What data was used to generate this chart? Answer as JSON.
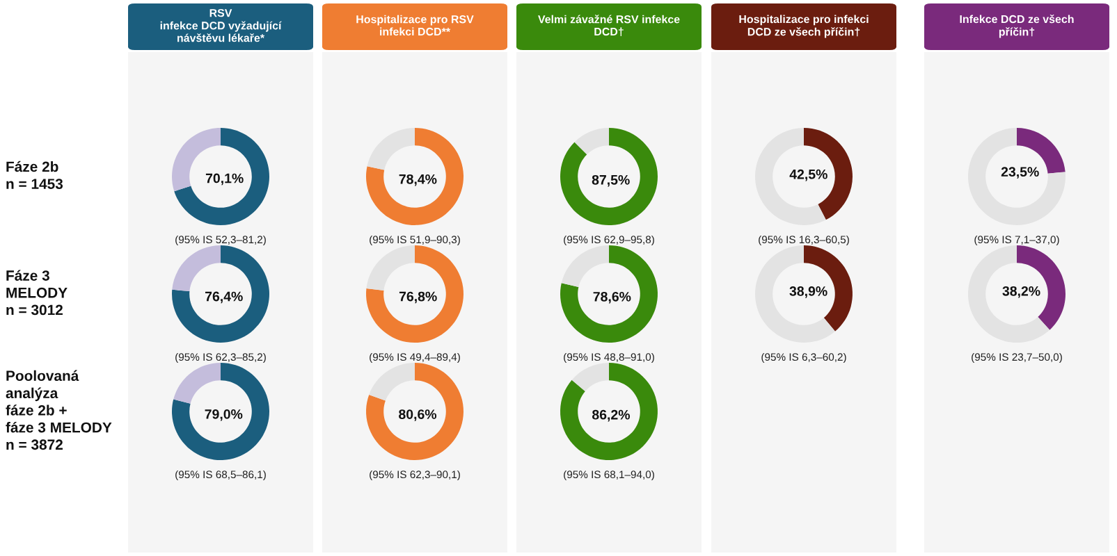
{
  "chart_data": [
    {
      "type": "donut",
      "title": "RSV\ninfekce DCD vyžadující\nnávštěvu lékaře*",
      "ylabel": "Fáze 2b\nn = 1453",
      "categories": [
        null,
        null
      ],
      "values": [
        70.1,
        29.9
      ],
      "colors": [
        "#1b5e7e",
        "#c4bddc"
      ],
      "value_labels": [
        "70,1%",
        null
      ],
      "annotations": [
        "(95% IS 52,3–81,2)"
      ]
    },
    {
      "type": "donut",
      "title": "Hospitalizace pro RSV\ninfekci DCD**",
      "categories": [
        null,
        null
      ],
      "values": [
        78.4,
        21.6
      ],
      "colors": [
        "#ef7d32",
        "#e3e3e3"
      ],
      "value_labels": [
        "78,4%",
        null
      ],
      "annotations": [
        "(95% IS 51,9–90,3)"
      ]
    },
    {
      "type": "donut",
      "title": "Velmi závažné RSV infekce\nDCD†",
      "categories": [
        null,
        null
      ],
      "values": [
        87.5,
        12.5
      ],
      "colors": [
        "#3a8a0c",
        "#e3e3e3"
      ],
      "value_labels": [
        "87,5%",
        null
      ],
      "annotations": [
        "(95% IS 62,9–95,8)"
      ]
    },
    {
      "type": "donut",
      "title": "Hospitalizace pro infekci\nDCD ze všech příčin†",
      "categories": [
        null,
        null
      ],
      "values": [
        42.5,
        57.5
      ],
      "colors": [
        "#6b1d0f",
        "#e3e3e3"
      ],
      "value_labels": [
        "42,5%",
        null
      ],
      "annotations": [
        "(95% IS 16,3–60,5)"
      ]
    },
    {
      "type": "donut",
      "title": "Infekce DCD ze všech\npříčin†",
      "categories": [
        null,
        null
      ],
      "values": [
        23.5,
        76.5
      ],
      "colors": [
        "#7a2a7c",
        "#e3e3e3"
      ],
      "value_labels": [
        "23,5%",
        null
      ],
      "annotations": [
        "(95% IS 7,1–37,0)"
      ]
    },
    {
      "type": "donut",
      "ylabel": "Fáze 3\nMELODY\nn = 3012",
      "categories": [
        null,
        null
      ],
      "values": [
        76.4,
        23.6
      ],
      "colors": [
        "#1b5e7e",
        "#c4bddc"
      ],
      "value_labels": [
        "76,4%",
        null
      ],
      "annotations": [
        "(95% IS 62,3–85,2)"
      ]
    },
    {
      "type": "donut",
      "categories": [
        null,
        null
      ],
      "values": [
        76.8,
        23.2
      ],
      "colors": [
        "#ef7d32",
        "#e3e3e3"
      ],
      "value_labels": [
        "76,8%",
        null
      ],
      "annotations": [
        "(95% IS 49,4–89,4)"
      ]
    },
    {
      "type": "donut",
      "categories": [
        null,
        null
      ],
      "values": [
        78.6,
        21.4
      ],
      "colors": [
        "#3a8a0c",
        "#e3e3e3"
      ],
      "value_labels": [
        "78,6%",
        null
      ],
      "annotations": [
        "(95% IS 48,8–91,0)"
      ]
    },
    {
      "type": "donut",
      "categories": [
        null,
        null
      ],
      "values": [
        38.9,
        61.1
      ],
      "colors": [
        "#6b1d0f",
        "#e3e3e3"
      ],
      "value_labels": [
        "38,9%",
        null
      ],
      "annotations": [
        "(95% IS 6,3–60,2)"
      ]
    },
    {
      "type": "donut",
      "categories": [
        null,
        null
      ],
      "values": [
        38.2,
        61.8
      ],
      "colors": [
        "#7a2a7c",
        "#e3e3e3"
      ],
      "value_labels": [
        "38,2%",
        null
      ],
      "annotations": [
        "(95% IS 23,7–50,0)"
      ]
    },
    {
      "type": "donut",
      "ylabel": "Poolovaná\nanalýza\nfáze 2b +\nfáze 3 MELODY\nn = 3872",
      "categories": [
        null,
        null
      ],
      "values": [
        79.0,
        21.0
      ],
      "colors": [
        "#1b5e7e",
        "#c4bddc"
      ],
      "value_labels": [
        "79,0%",
        null
      ],
      "annotations": [
        "(95% IS 68,5–86,1)"
      ]
    },
    {
      "type": "donut",
      "categories": [
        null,
        null
      ],
      "values": [
        80.6,
        19.4
      ],
      "colors": [
        "#ef7d32",
        "#e3e3e3"
      ],
      "value_labels": [
        "80,6%",
        null
      ],
      "annotations": [
        "(95% IS 62,3–90,1)"
      ]
    },
    {
      "type": "donut",
      "categories": [
        null,
        null
      ],
      "values": [
        86.2,
        13.8
      ],
      "colors": [
        "#3a8a0c",
        "#e3e3e3"
      ],
      "value_labels": [
        "86,2%",
        null
      ],
      "annotations": [
        "(95% IS 68,1–94,0)"
      ]
    }
  ]
}
